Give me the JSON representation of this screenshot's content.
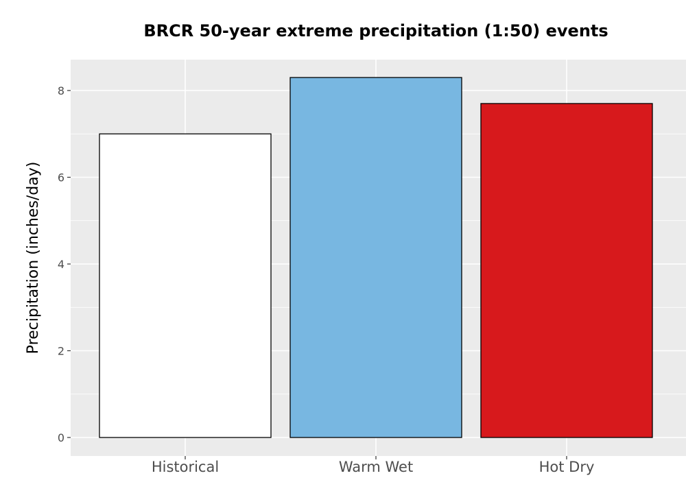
{
  "chart_data": {
    "type": "bar",
    "title": "BRCR 50-year extreme precipitation (1:50) events",
    "xlabel": "",
    "ylabel": "Precipitation (inches/day)",
    "categories": [
      "Historical",
      "Warm Wet",
      "Hot Dry"
    ],
    "values": [
      7.0,
      8.3,
      7.7
    ],
    "bar_colors": [
      "#ffffff",
      "#78b7e1",
      "#d7191c"
    ],
    "bar_outline": "#000000",
    "ylim": [
      -0.4,
      8.75
    ],
    "yticks": [
      0,
      2,
      4,
      6,
      8
    ],
    "ytick_labels": [
      "0",
      "2",
      "4",
      "6",
      "8"
    ],
    "grid": true,
    "panel_background": "#ebebeb",
    "grid_color": "#ffffff",
    "legend": "none"
  }
}
